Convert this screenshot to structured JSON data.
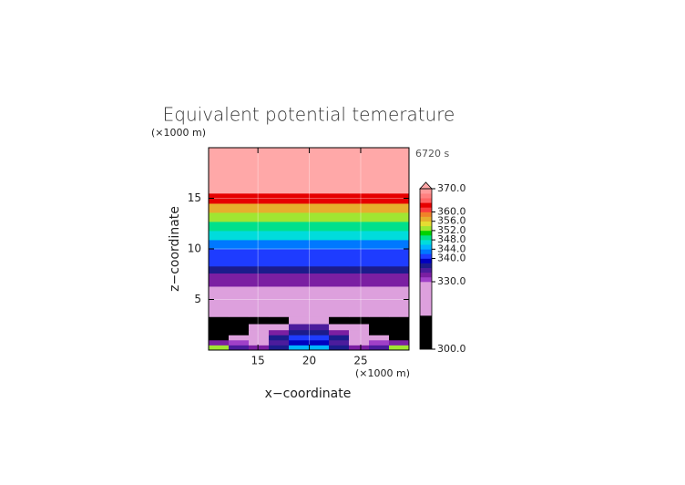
{
  "chart_data": {
    "type": "contour",
    "title": "Equivalent potential temerature",
    "x_label": "x−coordinate",
    "y_label": "z−coordinate",
    "x_unit": "(×1000 m)",
    "y_unit": "(×1000 m)",
    "time": "6720 s",
    "xlim": [
      10.2,
      29.7
    ],
    "ylim": [
      0,
      20
    ],
    "xticks": [
      15,
      20,
      25
    ],
    "yticks": [
      5,
      10,
      15
    ],
    "grid": true,
    "x_edges": [
      10.2,
      12.15,
      14.1,
      16.05,
      18,
      19.95,
      21.9,
      23.85,
      25.8,
      27.75,
      29.7
    ],
    "z_edges": [
      0,
      0.5,
      1,
      1.5,
      2,
      2.6,
      3.3,
      6.3,
      7.6,
      8.3,
      10,
      10.9,
      11.8,
      12.7,
      13.6,
      14.5,
      15.5,
      20
    ],
    "values": [
      [
        353,
        335,
        333,
        336,
        345,
        345,
        336,
        333,
        335,
        353
      ],
      [
        333,
        331,
        329,
        334,
        339,
        339,
        334,
        329,
        331,
        333
      ],
      [
        320,
        329,
        328,
        336,
        340,
        340,
        336,
        328,
        329,
        320
      ],
      [
        320,
        320,
        328,
        333,
        337,
        337,
        333,
        328,
        320,
        320
      ],
      [
        320,
        320,
        327,
        328,
        334,
        334,
        328,
        327,
        320,
        320
      ],
      [
        320,
        320,
        320,
        320,
        328,
        328,
        320,
        320,
        320,
        320
      ],
      [
        328,
        328,
        328,
        328,
        328,
        328,
        328,
        328,
        328,
        328
      ],
      [
        333,
        333,
        333,
        333,
        333,
        333,
        333,
        333,
        333,
        333
      ],
      [
        337,
        337,
        337,
        337,
        337,
        337,
        337,
        337,
        337,
        337
      ],
      [
        341,
        341,
        341,
        341,
        341,
        341,
        341,
        341,
        341,
        341
      ],
      [
        343,
        343,
        343,
        343,
        343,
        343,
        343,
        343,
        343,
        343
      ],
      [
        346,
        346,
        346,
        346,
        346,
        346,
        346,
        346,
        346,
        346
      ],
      [
        349,
        349,
        349,
        349,
        349,
        349,
        349,
        349,
        349,
        349
      ],
      [
        353,
        353,
        353,
        353,
        353,
        353,
        353,
        353,
        353,
        353
      ],
      [
        357,
        357,
        357,
        357,
        357,
        357,
        357,
        357,
        357,
        357
      ],
      [
        363,
        363,
        363,
        363,
        363,
        363,
        363,
        363,
        363,
        363
      ],
      [
        372,
        372,
        372,
        372,
        372,
        372,
        372,
        372,
        372,
        372
      ]
    ],
    "colorbar": {
      "levels": [
        300,
        326,
        330,
        332,
        334,
        336,
        338,
        340,
        342,
        344,
        346,
        348,
        350,
        352,
        354,
        356,
        358,
        360,
        362,
        364,
        366,
        368,
        370
      ],
      "colors": [
        "#000000",
        "#dda0dd",
        "#a040c8",
        "#7b1fa2",
        "#4b1c9c",
        "#1c1c8c",
        "#0000c0",
        "#1e3cff",
        "#0078ff",
        "#00b4ff",
        "#00dcdc",
        "#00e08c",
        "#00d200",
        "#a0e632",
        "#e6dc32",
        "#e6af2d",
        "#f08228",
        "#fa3c3c",
        "#e60000",
        "#ff6464",
        "#ff8080",
        "#ff9a9a"
      ],
      "extend_color": "#ffa8a8",
      "ticks": [
        {
          "value": 370,
          "label": "370.0"
        },
        {
          "value": 360,
          "label": "360.0"
        },
        {
          "value": 356,
          "label": "356.0"
        },
        {
          "value": 352,
          "label": "352.0"
        },
        {
          "value": 348,
          "label": "348.0"
        },
        {
          "value": 344,
          "label": "344.0"
        },
        {
          "value": 340,
          "label": "340.0"
        },
        {
          "value": 330,
          "label": "330.0"
        },
        {
          "value": 300,
          "label": "300.0"
        }
      ]
    }
  }
}
